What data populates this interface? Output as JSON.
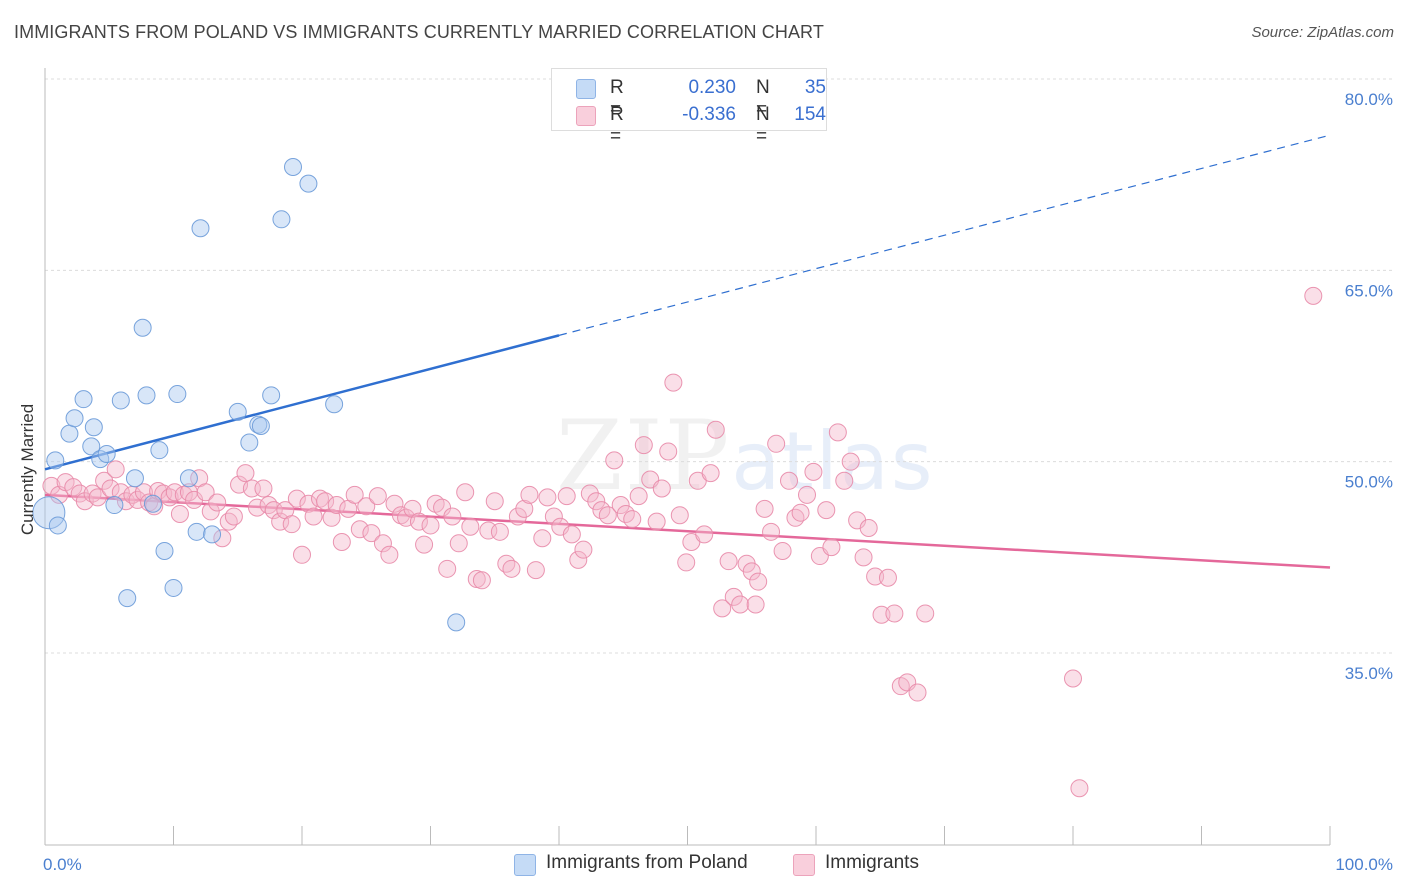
{
  "header": {
    "title": "IMMIGRANTS FROM POLAND VS IMMIGRANTS CURRENTLY MARRIED CORRELATION CHART",
    "source": "Source: ZipAtlas.com"
  },
  "watermark": {
    "zip": "ZIP",
    "atlas": "atlas"
  },
  "legend": {
    "rows": [
      {
        "r_label": "R =",
        "r_value": "0.230",
        "n_label": "N =",
        "n_value": "35",
        "color": "#a9c8f0"
      },
      {
        "r_label": "R =",
        "r_value": "-0.336",
        "n_label": "N =",
        "n_value": "154",
        "color": "#f5b8cc"
      }
    ]
  },
  "bottom_legend": [
    {
      "label": "Immigrants from Poland",
      "color": "#a9c8f0"
    },
    {
      "label": "Immigrants",
      "color": "#f5b8cc"
    }
  ],
  "chart_data": {
    "type": "scatter",
    "title": "IMMIGRANTS FROM POLAND VS IMMIGRANTS CURRENTLY MARRIED CORRELATION CHART",
    "xlabel": "",
    "ylabel": "Currently Married",
    "xlim": [
      0,
      100
    ],
    "ylim": [
      20,
      82
    ],
    "x_tick_labels": [
      "0.0%",
      "100.0%"
    ],
    "y_ticks": [
      35,
      50,
      65,
      80
    ],
    "y_tick_labels": [
      "35.0%",
      "50.0%",
      "65.0%",
      "80.0%"
    ],
    "grid": true,
    "series": [
      {
        "name": "Immigrants from Poland",
        "color": "#a9c8f0",
        "stroke": "#6a9ad8",
        "trend": {
          "x0": 0,
          "y0": 49.4,
          "x1": 40,
          "y1": 59.9,
          "dash_to_x": 100,
          "dash_to_y": 75.6,
          "color": "#2f6fd0"
        },
        "points": [
          [
            0.3,
            46.0
          ],
          [
            1.0,
            45.0
          ],
          [
            0.8,
            50.1
          ],
          [
            1.9,
            52.2
          ],
          [
            2.3,
            53.4
          ],
          [
            3.0,
            54.9
          ],
          [
            3.8,
            52.7
          ],
          [
            3.6,
            51.2
          ],
          [
            4.3,
            50.2
          ],
          [
            4.8,
            50.6
          ],
          [
            5.4,
            46.6
          ],
          [
            5.9,
            54.8
          ],
          [
            6.4,
            39.3
          ],
          [
            7.0,
            48.7
          ],
          [
            7.6,
            60.5
          ],
          [
            7.9,
            55.2
          ],
          [
            8.4,
            46.7
          ],
          [
            8.9,
            50.9
          ],
          [
            9.3,
            43.0
          ],
          [
            10.0,
            40.1
          ],
          [
            10.3,
            55.3
          ],
          [
            11.2,
            48.7
          ],
          [
            11.8,
            44.5
          ],
          [
            12.1,
            68.3
          ],
          [
            13.0,
            44.3
          ],
          [
            15.0,
            53.9
          ],
          [
            15.9,
            51.5
          ],
          [
            16.6,
            52.9
          ],
          [
            16.8,
            52.8
          ],
          [
            17.6,
            55.2
          ],
          [
            18.4,
            69.0
          ],
          [
            19.3,
            73.1
          ],
          [
            20.5,
            71.8
          ],
          [
            22.5,
            54.5
          ],
          [
            32.0,
            37.4
          ]
        ]
      },
      {
        "name": "Immigrants",
        "color": "#f5b8cc",
        "stroke": "#e88aa8",
        "trend": {
          "x0": 0,
          "y0": 47.4,
          "x1": 100,
          "y1": 41.7,
          "color": "#e4689a"
        },
        "points": [
          [
            0.5,
            48.1
          ],
          [
            1.1,
            47.4
          ],
          [
            1.6,
            48.4
          ],
          [
            2.2,
            48.0
          ],
          [
            2.7,
            47.5
          ],
          [
            3.1,
            46.9
          ],
          [
            3.7,
            47.5
          ],
          [
            4.1,
            47.2
          ],
          [
            4.6,
            48.5
          ],
          [
            5.1,
            47.9
          ],
          [
            5.5,
            49.4
          ],
          [
            5.9,
            47.6
          ],
          [
            6.3,
            46.9
          ],
          [
            6.8,
            47.4
          ],
          [
            7.2,
            47.0
          ],
          [
            7.7,
            47.6
          ],
          [
            8.1,
            46.8
          ],
          [
            8.5,
            46.5
          ],
          [
            8.8,
            47.7
          ],
          [
            9.2,
            47.5
          ],
          [
            9.7,
            47.2
          ],
          [
            10.1,
            47.6
          ],
          [
            10.5,
            45.9
          ],
          [
            10.8,
            47.4
          ],
          [
            11.2,
            47.6
          ],
          [
            11.6,
            47.0
          ],
          [
            12.0,
            48.7
          ],
          [
            12.5,
            47.6
          ],
          [
            12.9,
            46.1
          ],
          [
            13.4,
            46.8
          ],
          [
            13.8,
            44.0
          ],
          [
            14.3,
            45.3
          ],
          [
            14.7,
            45.7
          ],
          [
            15.1,
            48.2
          ],
          [
            15.6,
            49.1
          ],
          [
            16.1,
            47.9
          ],
          [
            16.5,
            46.4
          ],
          [
            17.0,
            47.9
          ],
          [
            17.4,
            46.6
          ],
          [
            17.8,
            46.2
          ],
          [
            18.3,
            45.3
          ],
          [
            18.7,
            46.2
          ],
          [
            19.2,
            45.1
          ],
          [
            19.6,
            47.1
          ],
          [
            20.0,
            42.7
          ],
          [
            20.5,
            46.7
          ],
          [
            20.9,
            45.7
          ],
          [
            21.4,
            47.1
          ],
          [
            21.8,
            46.9
          ],
          [
            22.3,
            45.6
          ],
          [
            22.7,
            46.6
          ],
          [
            23.1,
            43.7
          ],
          [
            23.6,
            46.3
          ],
          [
            24.1,
            47.4
          ],
          [
            24.5,
            44.7
          ],
          [
            25.0,
            46.5
          ],
          [
            25.4,
            44.4
          ],
          [
            25.9,
            47.3
          ],
          [
            26.3,
            43.6
          ],
          [
            26.8,
            42.7
          ],
          [
            27.2,
            46.7
          ],
          [
            27.7,
            45.8
          ],
          [
            28.1,
            45.6
          ],
          [
            28.6,
            46.3
          ],
          [
            29.1,
            45.3
          ],
          [
            29.5,
            43.5
          ],
          [
            30.0,
            45.0
          ],
          [
            30.4,
            46.7
          ],
          [
            30.9,
            46.4
          ],
          [
            31.3,
            41.6
          ],
          [
            31.7,
            45.7
          ],
          [
            32.2,
            43.6
          ],
          [
            32.7,
            47.6
          ],
          [
            33.1,
            44.9
          ],
          [
            33.6,
            40.8
          ],
          [
            34.0,
            40.7
          ],
          [
            34.5,
            44.6
          ],
          [
            35.0,
            46.9
          ],
          [
            35.4,
            44.5
          ],
          [
            35.9,
            42.0
          ],
          [
            36.3,
            41.6
          ],
          [
            36.8,
            45.7
          ],
          [
            37.3,
            46.3
          ],
          [
            37.7,
            47.4
          ],
          [
            38.2,
            41.5
          ],
          [
            38.7,
            44.0
          ],
          [
            39.1,
            47.2
          ],
          [
            39.6,
            45.7
          ],
          [
            40.1,
            44.9
          ],
          [
            40.6,
            47.3
          ],
          [
            41.0,
            44.3
          ],
          [
            41.5,
            42.3
          ],
          [
            41.9,
            43.1
          ],
          [
            42.4,
            47.5
          ],
          [
            42.9,
            46.9
          ],
          [
            43.3,
            46.2
          ],
          [
            43.8,
            45.8
          ],
          [
            44.3,
            50.1
          ],
          [
            44.8,
            46.6
          ],
          [
            45.2,
            45.9
          ],
          [
            45.7,
            45.5
          ],
          [
            46.2,
            47.3
          ],
          [
            46.6,
            51.3
          ],
          [
            47.1,
            48.6
          ],
          [
            47.6,
            45.3
          ],
          [
            48.0,
            47.9
          ],
          [
            48.5,
            50.8
          ],
          [
            48.9,
            56.2
          ],
          [
            49.4,
            45.8
          ],
          [
            49.9,
            42.1
          ],
          [
            50.3,
            43.7
          ],
          [
            50.8,
            48.5
          ],
          [
            51.3,
            44.3
          ],
          [
            51.8,
            49.1
          ],
          [
            52.2,
            52.5
          ],
          [
            52.7,
            38.5
          ],
          [
            53.2,
            42.2
          ],
          [
            53.6,
            39.4
          ],
          [
            54.1,
            38.8
          ],
          [
            54.6,
            42.0
          ],
          [
            55.0,
            41.4
          ],
          [
            55.5,
            40.6
          ],
          [
            56.0,
            46.3
          ],
          [
            56.5,
            44.5
          ],
          [
            56.9,
            51.4
          ],
          [
            57.4,
            43.0
          ],
          [
            57.9,
            48.5
          ],
          [
            58.4,
            45.6
          ],
          [
            58.8,
            46.0
          ],
          [
            59.3,
            47.4
          ],
          [
            59.8,
            49.2
          ],
          [
            60.3,
            42.6
          ],
          [
            60.8,
            46.2
          ],
          [
            61.2,
            43.3
          ],
          [
            61.7,
            52.3
          ],
          [
            62.2,
            48.5
          ],
          [
            62.7,
            50.0
          ],
          [
            63.2,
            45.4
          ],
          [
            63.7,
            42.5
          ],
          [
            64.1,
            44.8
          ],
          [
            64.6,
            41.0
          ],
          [
            65.1,
            38.0
          ],
          [
            65.6,
            40.9
          ],
          [
            66.1,
            38.1
          ],
          [
            66.6,
            32.4
          ],
          [
            67.1,
            32.7
          ],
          [
            67.9,
            31.9
          ],
          [
            68.5,
            38.1
          ],
          [
            80.0,
            33.0
          ],
          [
            80.5,
            24.4
          ],
          [
            98.7,
            63.0
          ],
          [
            55.3,
            38.8
          ]
        ]
      }
    ]
  }
}
